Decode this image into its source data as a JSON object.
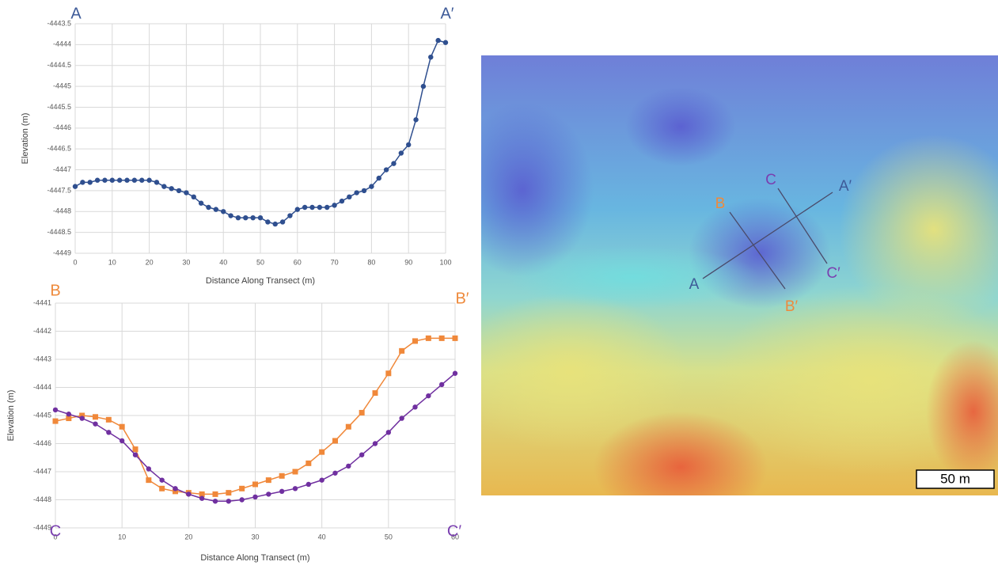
{
  "chart_data": [
    {
      "type": "line",
      "corner_labels": [
        {
          "text": "A",
          "color": "#3d5a98"
        },
        {
          "text": "A′",
          "color": "#3d5a98"
        }
      ],
      "x_label": "Distance Along Transect (m)",
      "y_label": "Elevation (m)",
      "xlim": [
        0,
        100
      ],
      "xticks": [
        0,
        10,
        20,
        30,
        40,
        50,
        60,
        70,
        80,
        90,
        100
      ],
      "ylim": [
        -4449,
        -4443.5
      ],
      "yticks": [
        -4443.5,
        -4444,
        -4444.5,
        -4445,
        -4445.5,
        -4446,
        -4446.5,
        -4447,
        -4447.5,
        -4448,
        -4448.5,
        -4449
      ],
      "grid": true,
      "series": [
        {
          "color": "#2f4f8f",
          "marker": "circle",
          "x": [
            0,
            2,
            4,
            6,
            8,
            10,
            12,
            14,
            16,
            18,
            20,
            22,
            24,
            26,
            28,
            30,
            32,
            34,
            36,
            38,
            40,
            42,
            44,
            46,
            48,
            50,
            52,
            54,
            56,
            58,
            60,
            62,
            64,
            66,
            68,
            70,
            72,
            74,
            76,
            78,
            80,
            82,
            84,
            86,
            88,
            90,
            92,
            94,
            96,
            98,
            100
          ],
          "values": [
            -4447.4,
            -4447.3,
            -4447.3,
            -4447.25,
            -4447.25,
            -4447.25,
            -4447.25,
            -4447.25,
            -4447.25,
            -4447.25,
            -4447.25,
            -4447.3,
            -4447.4,
            -4447.45,
            -4447.5,
            -4447.55,
            -4447.65,
            -4447.8,
            -4447.9,
            -4447.95,
            -4448,
            -4448.1,
            -4448.15,
            -4448.15,
            -4448.15,
            -4448.15,
            -4448.25,
            -4448.3,
            -4448.25,
            -4448.1,
            -4447.95,
            -4447.9,
            -4447.9,
            -4447.9,
            -4447.9,
            -4447.85,
            -4447.75,
            -4447.65,
            -4447.55,
            -4447.5,
            -4447.4,
            -4447.2,
            -4447,
            -4446.85,
            -4446.6,
            -4446.4,
            -4445.8,
            -4445,
            -4444.3,
            -4443.9,
            -4443.95
          ]
        }
      ]
    },
    {
      "type": "line",
      "corner_labels": [
        {
          "text": "B",
          "color": "#ee8a3c"
        },
        {
          "text": "B′",
          "color": "#ee8a3c"
        },
        {
          "text": "C",
          "color": "#7a3fb0"
        },
        {
          "text": "C′",
          "color": "#7a3fb0"
        }
      ],
      "x_label": "Distance Along Transect (m)",
      "y_label": "Elevation (m)",
      "xlim": [
        0,
        60
      ],
      "xticks": [
        0,
        10,
        20,
        30,
        40,
        50,
        60
      ],
      "ylim": [
        -4449,
        -4441
      ],
      "yticks": [
        -4441,
        -4442,
        -4443,
        -4444,
        -4445,
        -4446,
        -4447,
        -4448,
        -4449
      ],
      "grid": true,
      "series": [
        {
          "color": "#f0883a",
          "marker": "square",
          "x": [
            0,
            2,
            4,
            6,
            8,
            10,
            12,
            14,
            16,
            18,
            20,
            22,
            24,
            26,
            28,
            30,
            32,
            34,
            36,
            38,
            40,
            42,
            44,
            46,
            48,
            50,
            52,
            54,
            56,
            58,
            60
          ],
          "values": [
            -4445.2,
            -4445.1,
            -4445,
            -4445.05,
            -4445.15,
            -4445.4,
            -4446.2,
            -4447.3,
            -4447.6,
            -4447.7,
            -4447.75,
            -4447.8,
            -4447.8,
            -4447.75,
            -4447.6,
            -4447.45,
            -4447.3,
            -4447.15,
            -4447,
            -4446.7,
            -4446.3,
            -4445.9,
            -4445.4,
            -4444.9,
            -4444.2,
            -4443.5,
            -4442.7,
            -4442.35,
            -4442.25,
            -4442.25,
            -4442.25
          ]
        },
        {
          "color": "#7030a0",
          "marker": "circle",
          "x": [
            0,
            2,
            4,
            6,
            8,
            10,
            12,
            14,
            16,
            18,
            20,
            22,
            24,
            26,
            28,
            30,
            32,
            34,
            36,
            38,
            40,
            42,
            44,
            46,
            48,
            50,
            52,
            54,
            56,
            58,
            60
          ],
          "values": [
            -4444.8,
            -4444.95,
            -4445.1,
            -4445.3,
            -4445.6,
            -4445.9,
            -4446.4,
            -4446.9,
            -4447.3,
            -4447.6,
            -4447.8,
            -4447.95,
            -4448.05,
            -4448.05,
            -4448,
            -4447.9,
            -4447.8,
            -4447.7,
            -4447.6,
            -4447.45,
            -4447.3,
            -4447.05,
            -4446.8,
            -4446.4,
            -4446,
            -4445.6,
            -4445.1,
            -4444.7,
            -4444.3,
            -4443.9,
            -4443.5
          ]
        }
      ]
    }
  ],
  "map": {
    "labels": [
      "A",
      "A′",
      "B",
      "B′",
      "C",
      "C′"
    ],
    "scale_bar": "50 m"
  }
}
